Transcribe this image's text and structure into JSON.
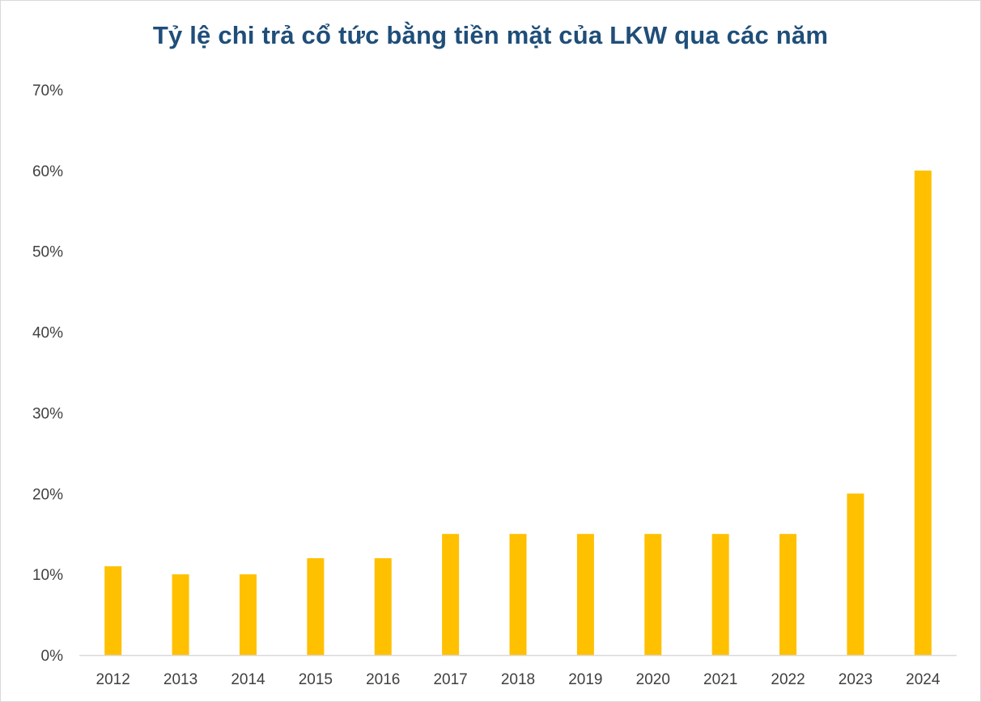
{
  "chart_data": {
    "type": "bar",
    "title": "Tỷ lệ chi trả cổ tức bằng tiền mặt của LKW qua các năm",
    "xlabel": "",
    "ylabel": "",
    "categories": [
      "2012",
      "2013",
      "2014",
      "2015",
      "2016",
      "2017",
      "2018",
      "2019",
      "2020",
      "2021",
      "2022",
      "2023",
      "2024"
    ],
    "series": [
      {
        "values": [
          11,
          10,
          10,
          12,
          12,
          15,
          15,
          15,
          15,
          15,
          15,
          20,
          60
        ]
      }
    ],
    "ylim": [
      0,
      70
    ],
    "yticks": [
      0,
      10,
      20,
      30,
      40,
      50,
      60,
      70
    ],
    "ytick_labels": [
      "0%",
      "10%",
      "20%",
      "30%",
      "40%",
      "50%",
      "60%",
      "70%"
    ],
    "grid": false,
    "legend": "none",
    "bar_color": "#FFC000",
    "title_color": "#1F4E79",
    "axis_color": "#D9D9D9"
  }
}
